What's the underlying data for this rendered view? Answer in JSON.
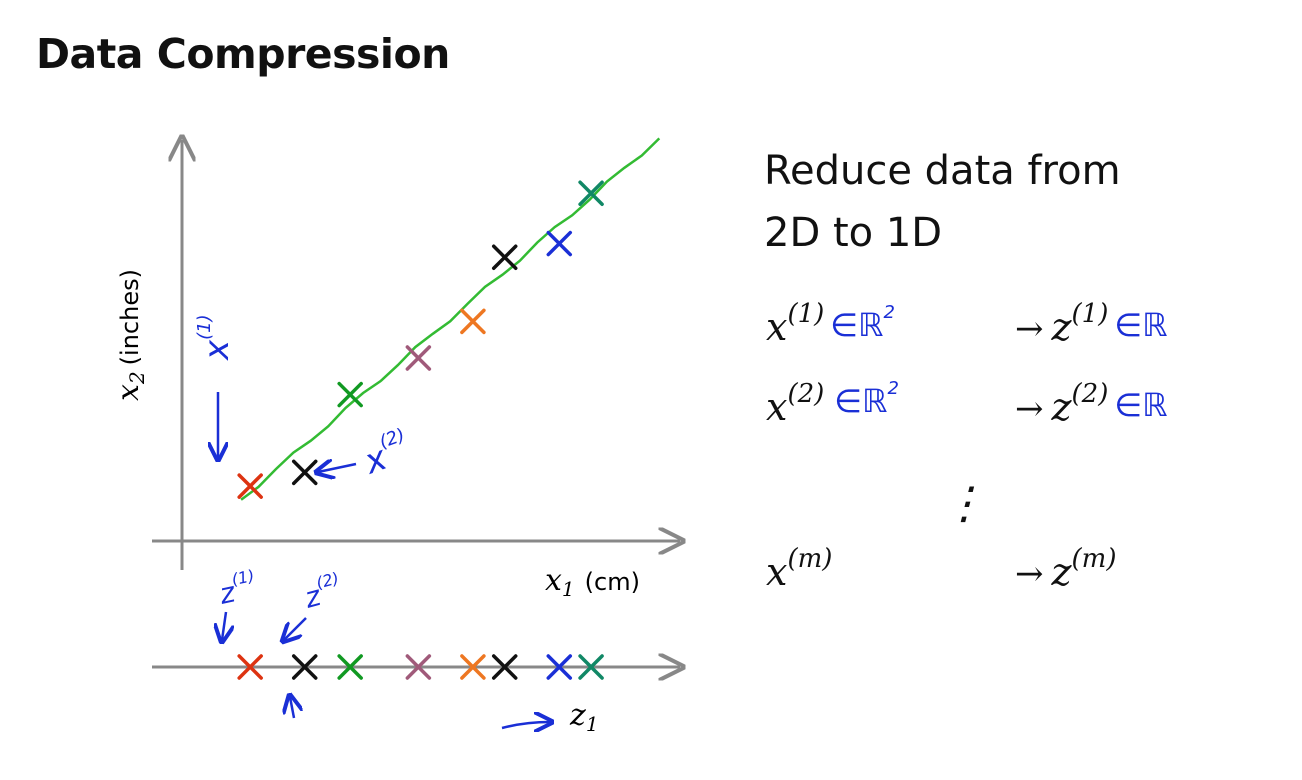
{
  "title": "Data Compression",
  "summary": {
    "line1": "Reduce data from",
    "line2": "2D to 1D"
  },
  "axes": {
    "x_label_var": "x",
    "x_label_sub": "1",
    "x_label_unit": "(cm)",
    "y_label_var": "x",
    "y_label_sub": "2",
    "y_label_unit": "(inches)",
    "z_label_var": "z",
    "z_label_sub": "1"
  },
  "colors": {
    "line": "#33bb33",
    "axis": "#888888",
    "handwriting": "#1a2fd6",
    "red": "#dd3311",
    "black": "#111111",
    "green": "#119922",
    "mauve": "#a05a7a",
    "orange": "#ee7722",
    "blue": "#1a2fd6",
    "teal": "#118866"
  },
  "chart_data": {
    "type": "scatter",
    "points_2d": [
      {
        "color": "red",
        "x": 1.0,
        "y": 1.0
      },
      {
        "color": "black",
        "x": 2.2,
        "y": 1.3
      },
      {
        "color": "green",
        "x": 3.2,
        "y": 3.0
      },
      {
        "color": "mauve",
        "x": 4.7,
        "y": 3.8
      },
      {
        "color": "orange",
        "x": 5.9,
        "y": 4.6
      },
      {
        "color": "black",
        "x": 6.6,
        "y": 6.0
      },
      {
        "color": "blue",
        "x": 7.8,
        "y": 6.3
      },
      {
        "color": "teal",
        "x": 8.5,
        "y": 7.4
      }
    ],
    "fit_line": [
      [
        0.8,
        0.7
      ],
      [
        10.0,
        8.6
      ]
    ],
    "projections_1d": [
      {
        "color": "red",
        "z": 1.0
      },
      {
        "color": "black",
        "z": 2.2
      },
      {
        "color": "green",
        "z": 3.2
      },
      {
        "color": "mauve",
        "z": 4.7
      },
      {
        "color": "orange",
        "z": 5.9
      },
      {
        "color": "black",
        "z": 6.6
      },
      {
        "color": "blue",
        "z": 7.8
      },
      {
        "color": "teal",
        "z": 8.5
      }
    ],
    "xlim": [
      -0.5,
      10.5
    ],
    "ylim": [
      -0.2,
      9.0
    ]
  },
  "annotations": {
    "x1_label": "x",
    "x1_sup": "(1)",
    "x2_label": "x",
    "x2_sup": "(2)",
    "z1_label": "z",
    "z1_sup": "(1)",
    "z2_label": "z",
    "z2_sup": "(2)"
  },
  "mappings": [
    {
      "var": "x",
      "sup": "(1)",
      "space": "∈ℝ",
      "space_sup": "2",
      "target": "z",
      "target_sup": "(1)",
      "target_space": "∈ℝ"
    },
    {
      "var": "x",
      "sup": "(2)",
      "space": "∈ℝ",
      "space_sup": "2",
      "target": "z",
      "target_sup": "(2)",
      "target_space": "∈ℝ"
    },
    {
      "var": "x",
      "sup": "(m)",
      "space": "",
      "space_sup": "",
      "target": "z",
      "target_sup": "(m)",
      "target_space": ""
    }
  ],
  "arrow_symbol": "→",
  "vdots": "⋮"
}
